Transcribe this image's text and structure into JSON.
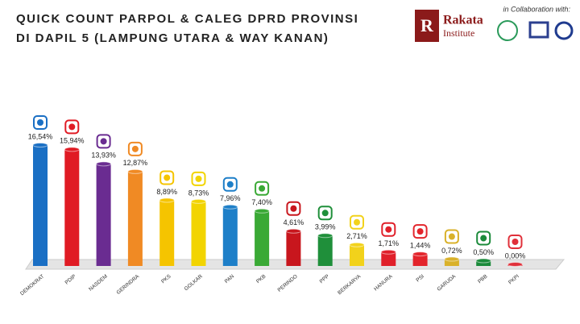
{
  "chart_data": {
    "type": "bar",
    "title": "QUICK COUNT PARPOL & CALEG DPRD PROVINSI",
    "subtitle": "DI DAPIL 5 (LAMPUNG UTARA & WAY KANAN)",
    "categories": [
      "DEMOKRAT",
      "PDIP",
      "NASDEM",
      "GERINDRA",
      "PKS",
      "GOLKAR",
      "PAN",
      "PKB",
      "PERINDO",
      "PPP",
      "BERKARYA",
      "HANURA",
      "PSI",
      "GARUDA",
      "PBB",
      "PKPI"
    ],
    "values": [
      16.54,
      15.94,
      13.93,
      12.87,
      8.89,
      8.73,
      7.96,
      7.4,
      4.61,
      3.99,
      2.71,
      1.71,
      1.44,
      0.72,
      0.5,
      0.0
    ],
    "value_labels": [
      "16,54%",
      "15,94%",
      "13,93%",
      "12,87%",
      "8,89%",
      "8,73%",
      "7,96%",
      "7,40%",
      "4,61%",
      "3,99%",
      "2,71%",
      "1,71%",
      "1,44%",
      "0,72%",
      "0,50%",
      "0,00%"
    ],
    "colors": [
      "#1a6fc4",
      "#e01b24",
      "#6a2c91",
      "#f08a24",
      "#f5c400",
      "#f2d400",
      "#1e7fc8",
      "#3aa935",
      "#c8161d",
      "#1f8f3a",
      "#f2d21b",
      "#e0202a",
      "#e3242b",
      "#d9b12a",
      "#1b8a3a",
      "#e0303a"
    ]
  },
  "branding": {
    "name": "Rakata",
    "name2": "Institute",
    "collab": "in Collaboration with:"
  }
}
